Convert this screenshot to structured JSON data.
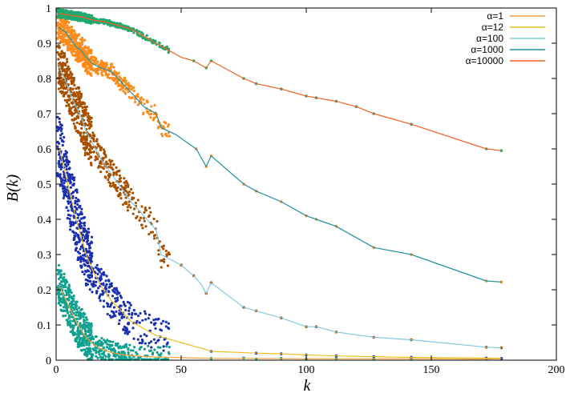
{
  "chart_data": {
    "type": "scatter",
    "title": "",
    "xlabel": "k",
    "ylabel": "B(k)",
    "xlim": [
      0,
      200
    ],
    "ylim": [
      0,
      1
    ],
    "xticks": [
      "0",
      "50",
      "100",
      "150",
      "200"
    ],
    "yticks": [
      "0",
      "0.1",
      "0.2",
      "0.3",
      "0.4",
      "0.5",
      "0.6",
      "0.7",
      "0.8",
      "0.9",
      "1"
    ],
    "grid": false,
    "legend_position": "top-right",
    "series": [
      {
        "name": "α=1",
        "line_color": "#f0a23c",
        "point_color": "#10a090",
        "curve": [
          [
            1,
            0.21
          ],
          [
            2,
            0.2
          ],
          [
            4,
            0.17
          ],
          [
            6,
            0.14
          ],
          [
            8,
            0.11
          ],
          [
            10,
            0.085
          ],
          [
            12,
            0.065
          ],
          [
            15,
            0.045
          ],
          [
            18,
            0.032
          ],
          [
            22,
            0.022
          ],
          [
            27,
            0.015
          ],
          [
            32,
            0.012
          ],
          [
            40,
            0.009
          ],
          [
            50,
            0.007
          ],
          [
            62,
            0.005
          ],
          [
            80,
            0.005
          ],
          [
            100,
            0.004
          ],
          [
            127,
            0.004
          ],
          [
            142,
            0.004
          ],
          [
            172,
            0.003
          ],
          [
            178,
            0.004
          ]
        ],
        "points": [
          [
            62,
            0.005
          ],
          [
            75,
            0.006
          ],
          [
            80,
            0.004
          ],
          [
            90,
            0.005
          ],
          [
            100,
            0.004
          ],
          [
            112,
            0.005
          ],
          [
            127,
            0.004
          ],
          [
            142,
            0.004
          ],
          [
            172,
            0.003
          ],
          [
            178,
            0.004
          ]
        ]
      },
      {
        "name": "α=12",
        "line_color": "#e8c020",
        "point_color": "#1a2fb0",
        "curve": [
          [
            1,
            0.61
          ],
          [
            2,
            0.58
          ],
          [
            4,
            0.52
          ],
          [
            6,
            0.46
          ],
          [
            8,
            0.4
          ],
          [
            10,
            0.35
          ],
          [
            12,
            0.3
          ],
          [
            15,
            0.25
          ],
          [
            18,
            0.21
          ],
          [
            22,
            0.17
          ],
          [
            26,
            0.14
          ],
          [
            30,
            0.11
          ],
          [
            35,
            0.09
          ],
          [
            40,
            0.07
          ],
          [
            45,
            0.06
          ],
          [
            50,
            0.05
          ],
          [
            55,
            0.04
          ],
          [
            60,
            0.03
          ],
          [
            62,
            0.025
          ],
          [
            80,
            0.02
          ],
          [
            90,
            0.018
          ],
          [
            100,
            0.015
          ],
          [
            112,
            0.012
          ],
          [
            127,
            0.01
          ],
          [
            142,
            0.008
          ],
          [
            172,
            0.006
          ],
          [
            178,
            0.005
          ]
        ],
        "points": [
          [
            62,
            0.025
          ],
          [
            80,
            0.02
          ],
          [
            90,
            0.018
          ],
          [
            100,
            0.015
          ],
          [
            112,
            0.012
          ],
          [
            127,
            0.01
          ],
          [
            142,
            0.008
          ],
          [
            172,
            0.006
          ],
          [
            178,
            0.005
          ]
        ]
      },
      {
        "name": "α=100",
        "line_color": "#80c8e0",
        "point_color": "#a85000",
        "curve": [
          [
            1,
            0.84
          ],
          [
            2,
            0.82
          ],
          [
            4,
            0.79
          ],
          [
            6,
            0.75
          ],
          [
            8,
            0.72
          ],
          [
            10,
            0.69
          ],
          [
            12,
            0.65
          ],
          [
            15,
            0.61
          ],
          [
            18,
            0.57
          ],
          [
            22,
            0.53
          ],
          [
            26,
            0.49
          ],
          [
            30,
            0.45
          ],
          [
            35,
            0.41
          ],
          [
            40,
            0.37
          ],
          [
            42,
            0.3
          ],
          [
            50,
            0.27
          ],
          [
            55,
            0.24
          ],
          [
            58,
            0.215
          ],
          [
            60,
            0.19
          ],
          [
            62,
            0.22
          ],
          [
            75,
            0.15
          ],
          [
            80,
            0.14
          ],
          [
            90,
            0.12
          ],
          [
            100,
            0.095
          ],
          [
            104,
            0.095
          ],
          [
            112,
            0.08
          ],
          [
            127,
            0.065
          ],
          [
            142,
            0.058
          ],
          [
            172,
            0.037
          ],
          [
            178,
            0.035
          ]
        ],
        "points": [
          [
            50,
            0.27
          ],
          [
            55,
            0.24
          ],
          [
            60,
            0.19
          ],
          [
            62,
            0.22
          ],
          [
            75,
            0.15
          ],
          [
            80,
            0.14
          ],
          [
            90,
            0.12
          ],
          [
            100,
            0.095
          ],
          [
            104,
            0.095
          ],
          [
            112,
            0.08
          ],
          [
            127,
            0.065
          ],
          [
            142,
            0.058
          ],
          [
            172,
            0.037
          ],
          [
            178,
            0.035
          ]
        ]
      },
      {
        "name": "α=1000",
        "line_color": "#2090a0",
        "point_color": "#ff8c1a",
        "curve": [
          [
            1,
            0.945
          ],
          [
            2,
            0.94
          ],
          [
            4,
            0.93
          ],
          [
            6,
            0.91
          ],
          [
            8,
            0.89
          ],
          [
            10,
            0.88
          ],
          [
            12,
            0.86
          ],
          [
            15,
            0.84
          ],
          [
            18,
            0.83
          ],
          [
            22,
            0.82
          ],
          [
            26,
            0.79
          ],
          [
            30,
            0.76
          ],
          [
            35,
            0.72
          ],
          [
            40,
            0.7
          ],
          [
            42,
            0.66
          ],
          [
            48,
            0.64
          ],
          [
            52,
            0.62
          ],
          [
            56,
            0.6
          ],
          [
            60,
            0.55
          ],
          [
            62,
            0.58
          ],
          [
            75,
            0.5
          ],
          [
            80,
            0.48
          ],
          [
            90,
            0.45
          ],
          [
            100,
            0.41
          ],
          [
            104,
            0.4
          ],
          [
            112,
            0.38
          ],
          [
            127,
            0.32
          ],
          [
            142,
            0.3
          ],
          [
            172,
            0.225
          ],
          [
            178,
            0.222
          ]
        ],
        "points": [
          [
            56,
            0.6
          ],
          [
            60,
            0.55
          ],
          [
            62,
            0.58
          ],
          [
            75,
            0.5
          ],
          [
            80,
            0.48
          ],
          [
            90,
            0.45
          ],
          [
            100,
            0.41
          ],
          [
            104,
            0.4
          ],
          [
            112,
            0.38
          ],
          [
            127,
            0.32
          ],
          [
            142,
            0.3
          ],
          [
            172,
            0.225
          ],
          [
            178,
            0.222
          ]
        ]
      },
      {
        "name": "α=10000",
        "line_color": "#f06020",
        "point_color": "#20a870",
        "curve": [
          [
            1,
            0.985
          ],
          [
            5,
            0.98
          ],
          [
            10,
            0.975
          ],
          [
            15,
            0.965
          ],
          [
            20,
            0.96
          ],
          [
            25,
            0.95
          ],
          [
            30,
            0.94
          ],
          [
            35,
            0.92
          ],
          [
            40,
            0.9
          ],
          [
            45,
            0.88
          ],
          [
            50,
            0.86
          ],
          [
            55,
            0.85
          ],
          [
            60,
            0.83
          ],
          [
            62,
            0.85
          ],
          [
            75,
            0.8
          ],
          [
            80,
            0.785
          ],
          [
            90,
            0.77
          ],
          [
            100,
            0.75
          ],
          [
            104,
            0.745
          ],
          [
            112,
            0.735
          ],
          [
            120,
            0.72
          ],
          [
            127,
            0.7
          ],
          [
            142,
            0.67
          ],
          [
            172,
            0.6
          ],
          [
            178,
            0.595
          ]
        ],
        "points": [
          [
            55,
            0.85
          ],
          [
            60,
            0.83
          ],
          [
            62,
            0.85
          ],
          [
            75,
            0.8
          ],
          [
            80,
            0.785
          ],
          [
            90,
            0.77
          ],
          [
            100,
            0.75
          ],
          [
            104,
            0.745
          ],
          [
            112,
            0.735
          ],
          [
            120,
            0.72
          ],
          [
            127,
            0.7
          ],
          [
            142,
            0.67
          ],
          [
            172,
            0.6
          ],
          [
            178,
            0.595
          ]
        ]
      }
    ]
  }
}
